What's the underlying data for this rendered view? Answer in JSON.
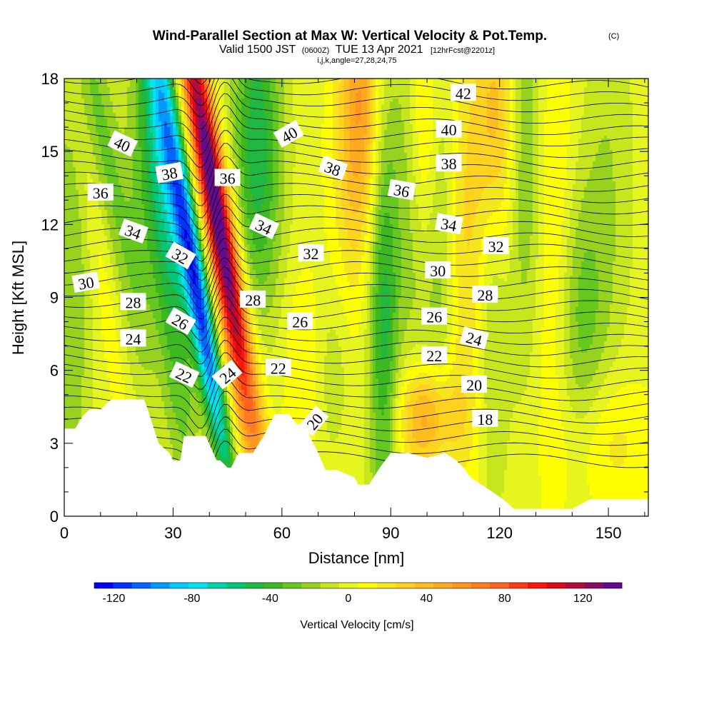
{
  "title": {
    "main": "Wind-Parallel Section at Max W: Vertical Velocity & Pot.Temp.",
    "copyright": "(C)",
    "valid_prefix": "Valid 1500 JST",
    "valid_utc": "(0600Z)",
    "valid_date": "TUE 13 Apr 2021",
    "forecast": "[12hrFcst@2201z]",
    "grid_info": "i,j,k,angle=27,28,24,75"
  },
  "chart_data": {
    "type": "heatmap",
    "xlabel": "Distance [nm]",
    "ylabel": "Height [Kft MSL]",
    "xlim": [
      0,
      161
    ],
    "ylim": [
      0,
      18
    ],
    "x_ticks": [
      0,
      30,
      60,
      90,
      120,
      150
    ],
    "y_ticks": [
      0,
      3,
      6,
      9,
      12,
      15,
      18
    ],
    "colorbar": {
      "label": "Vertical Velocity [cm/s]",
      "min": -130,
      "max": 140,
      "step": 10,
      "ticks": [
        -120,
        -80,
        -40,
        0,
        40,
        80,
        120
      ],
      "colors": [
        "#0000ff",
        "#0033ff",
        "#0066ff",
        "#0099ff",
        "#00ccff",
        "#00e5ee",
        "#00d4aa",
        "#00c878",
        "#20b840",
        "#3cb820",
        "#64c81e",
        "#96d21e",
        "#c8e61e",
        "#e6f51e",
        "#ffff00",
        "#f5e61e",
        "#ffd21e",
        "#ffbe1e",
        "#ffaa1e",
        "#ff961e",
        "#ff7d1e",
        "#ff641e",
        "#ff3c14",
        "#ff140a",
        "#dc0a14",
        "#b40a3c",
        "#8c0a64",
        "#640a8c"
      ]
    },
    "terrain_profile": {
      "x": [
        0,
        3,
        5,
        7,
        10,
        13,
        16,
        22,
        23,
        26,
        29,
        30,
        32,
        33,
        39,
        42,
        43,
        45,
        46,
        48,
        52,
        55,
        58,
        61,
        62,
        64,
        66,
        68,
        70,
        72,
        75,
        80,
        81,
        84,
        87,
        90,
        95,
        100,
        105,
        108,
        110,
        112,
        115,
        118,
        121,
        124,
        127,
        130,
        135,
        140,
        145,
        150,
        155,
        161
      ],
      "y": [
        3.6,
        3.6,
        4.1,
        4.4,
        4.4,
        4.8,
        4.8,
        4.8,
        4.4,
        3.0,
        2.6,
        2.3,
        2.3,
        3.3,
        3.3,
        2.3,
        2.3,
        2.0,
        2.0,
        2.6,
        2.6,
        3.3,
        4.2,
        4.2,
        4.2,
        3.8,
        3.8,
        3.2,
        2.6,
        1.9,
        1.9,
        1.6,
        1.3,
        1.3,
        2.0,
        2.6,
        2.6,
        2.4,
        2.6,
        2.3,
        2.0,
        1.6,
        1.3,
        1.0,
        0.7,
        0.3,
        0.3,
        0.3,
        0.3,
        0.3,
        0.7,
        0.7,
        0.7,
        0.7
      ]
    },
    "contour_labels": [
      {
        "text": "40",
        "x": 16,
        "y": 15.3,
        "angle": 25
      },
      {
        "text": "38",
        "x": 29,
        "y": 14.1,
        "angle": -10
      },
      {
        "text": "36",
        "x": 10,
        "y": 13.3,
        "angle": 0
      },
      {
        "text": "34",
        "x": 19,
        "y": 11.7,
        "angle": 20
      },
      {
        "text": "32",
        "x": 32,
        "y": 10.7,
        "angle": 30
      },
      {
        "text": "30",
        "x": 6,
        "y": 9.6,
        "angle": -10
      },
      {
        "text": "28",
        "x": 19,
        "y": 8.8,
        "angle": 0
      },
      {
        "text": "26",
        "x": 32,
        "y": 8.0,
        "angle": 30
      },
      {
        "text": "24",
        "x": 19,
        "y": 7.3,
        "angle": 0
      },
      {
        "text": "22",
        "x": 33,
        "y": 5.8,
        "angle": 25
      },
      {
        "text": "24",
        "x": 45,
        "y": 5.8,
        "angle": -40
      },
      {
        "text": "36",
        "x": 45,
        "y": 13.9,
        "angle": 0
      },
      {
        "text": "40",
        "x": 62,
        "y": 15.7,
        "angle": -30
      },
      {
        "text": "34",
        "x": 55,
        "y": 11.9,
        "angle": 25
      },
      {
        "text": "28",
        "x": 52,
        "y": 8.9,
        "angle": 0
      },
      {
        "text": "32",
        "x": 68,
        "y": 10.8,
        "angle": 0
      },
      {
        "text": "38",
        "x": 74,
        "y": 14.3,
        "angle": 20
      },
      {
        "text": "26",
        "x": 65,
        "y": 8.0,
        "angle": 0
      },
      {
        "text": "22",
        "x": 59,
        "y": 6.1,
        "angle": 0
      },
      {
        "text": "20",
        "x": 69,
        "y": 3.9,
        "angle": -50
      },
      {
        "text": "36",
        "x": 93,
        "y": 13.4,
        "angle": 10
      },
      {
        "text": "42",
        "x": 110,
        "y": 17.4,
        "angle": 0
      },
      {
        "text": "40",
        "x": 106,
        "y": 15.9,
        "angle": 0
      },
      {
        "text": "38",
        "x": 106,
        "y": 14.5,
        "angle": 0
      },
      {
        "text": "34",
        "x": 106,
        "y": 12.0,
        "angle": 10
      },
      {
        "text": "32",
        "x": 119,
        "y": 11.1,
        "angle": 0
      },
      {
        "text": "30",
        "x": 103,
        "y": 10.1,
        "angle": 0
      },
      {
        "text": "28",
        "x": 116,
        "y": 9.1,
        "angle": 0
      },
      {
        "text": "26",
        "x": 102,
        "y": 8.2,
        "angle": 0
      },
      {
        "text": "24",
        "x": 113,
        "y": 7.3,
        "angle": 15
      },
      {
        "text": "22",
        "x": 102,
        "y": 6.6,
        "angle": 0
      },
      {
        "text": "20",
        "x": 113,
        "y": 5.4,
        "angle": 0
      },
      {
        "text": "18",
        "x": 116,
        "y": 4.0,
        "angle": 0
      }
    ]
  }
}
